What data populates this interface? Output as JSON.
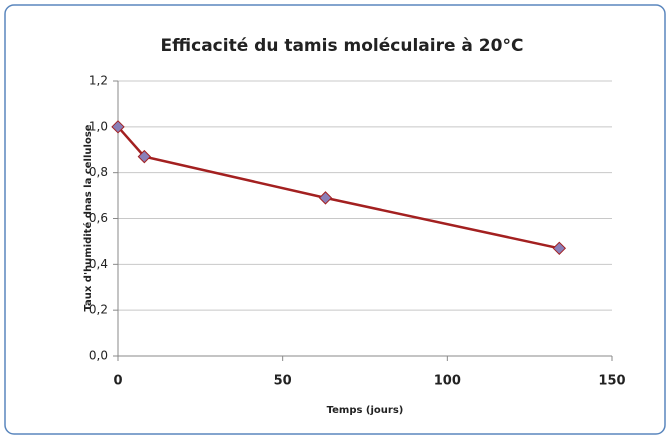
{
  "chart_data": {
    "type": "line",
    "title": "Efficacité du tamis moléculaire à 20°C",
    "x_label": "Temps (jours)",
    "y_label": "Taux d'humidité dnas la cellulose",
    "x": [
      0,
      8,
      63,
      134
    ],
    "series": [
      {
        "name": "Taux d'humidité",
        "color": "#a32020",
        "marker_color": "#8a7fb8",
        "values": [
          1.0,
          0.87,
          0.69,
          0.47
        ]
      }
    ],
    "xlim": [
      0,
      150
    ],
    "xticks": [
      0,
      50,
      100,
      150
    ],
    "ylim": [
      0,
      1.2
    ],
    "yticks": [
      {
        "value": 0,
        "label": "0,0"
      },
      {
        "value": 0.2,
        "label": "0,2"
      },
      {
        "value": 0.4,
        "label": "0,4"
      },
      {
        "value": 0.6,
        "label": "0,6"
      },
      {
        "value": 0.8,
        "label": "0,8"
      },
      {
        "value": 1.0,
        "label": "1,0"
      },
      {
        "value": 1.2,
        "label": "1,2"
      }
    ],
    "grid": true
  }
}
